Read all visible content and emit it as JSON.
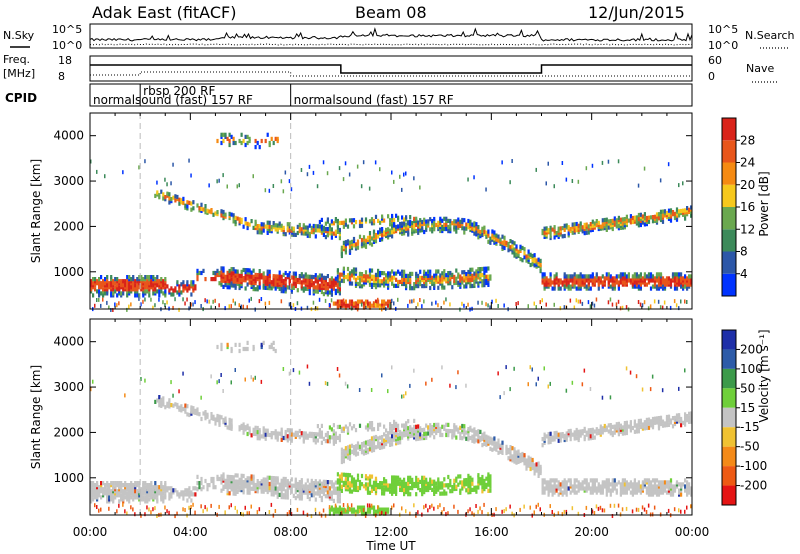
{
  "header": {
    "radar": "Adak East (fitACF)",
    "beam": "Beam 08",
    "date": "12/Jun/2015"
  },
  "strip_labels": {
    "nsky": "N.Sky",
    "nsky_tick_top": "10^5",
    "nsky_tick_bottom": "10^0",
    "nsearch": "N.Search",
    "nsearch_tick_top": "10^5",
    "nsearch_tick_bottom": "10^0",
    "freq_line1": "Freq.",
    "freq_line2": "[MHz]",
    "freq_tick_top": "18",
    "freq_tick_bottom": "8",
    "nave": "Nave",
    "nave_tick_top": "60",
    "nave_tick_bottom": "0",
    "cpid": "CPID"
  },
  "cpid_segments": [
    {
      "label": "normalsound (fast) 157 RF",
      "start_hour": 0
    },
    {
      "label": "rbsp 200 RF",
      "start_hour": 2
    },
    {
      "label": "normalsound (fast) 157 RF",
      "start_hour": 8
    }
  ],
  "colors": {
    "power": [
      "#0033ff",
      "#2c57a8",
      "#3c8a5a",
      "#6aa84f",
      "#f6c81c",
      "#f58a12",
      "#e8561b",
      "#d9231a"
    ],
    "velocity": [
      "#e51414",
      "#ee5a14",
      "#f48a18",
      "#f0c232",
      "#c4c4c4",
      "#6fcf3a",
      "#3c9a4a",
      "#2d5ba8",
      "#1e2fa8"
    ]
  },
  "chart_data": [
    {
      "type": "heatmap",
      "name": "power",
      "xlabel": "",
      "ylabel": "Slant Range [km]",
      "xlim": [
        0,
        24
      ],
      "ylim": [
        180,
        4500
      ],
      "x_ticks": [
        "00:00",
        "04:00",
        "08:00",
        "12:00",
        "16:00",
        "20:00",
        "00:00"
      ],
      "y_ticks": [
        1000,
        2000,
        3000,
        4000
      ],
      "colorbar_label": "Power [dB]",
      "colorbar_ticks": [
        "4",
        "8",
        "12",
        "16",
        "20",
        "24",
        "28"
      ],
      "colorbar_range": [
        0,
        30
      ]
    },
    {
      "type": "heatmap",
      "name": "velocity",
      "xlabel": "Time UT",
      "ylabel": "Slant Range [km]",
      "xlim": [
        0,
        24
      ],
      "ylim": [
        180,
        4500
      ],
      "x_ticks": [
        "00:00",
        "04:00",
        "08:00",
        "12:00",
        "16:00",
        "20:00",
        "00:00"
      ],
      "y_ticks": [
        1000,
        2000,
        3000,
        4000
      ],
      "colorbar_label": "Velocity [m s⁻¹]",
      "colorbar_ticks": [
        "200",
        "100",
        "50",
        "15",
        "-15",
        "-50",
        "-100",
        "-200"
      ]
    }
  ]
}
